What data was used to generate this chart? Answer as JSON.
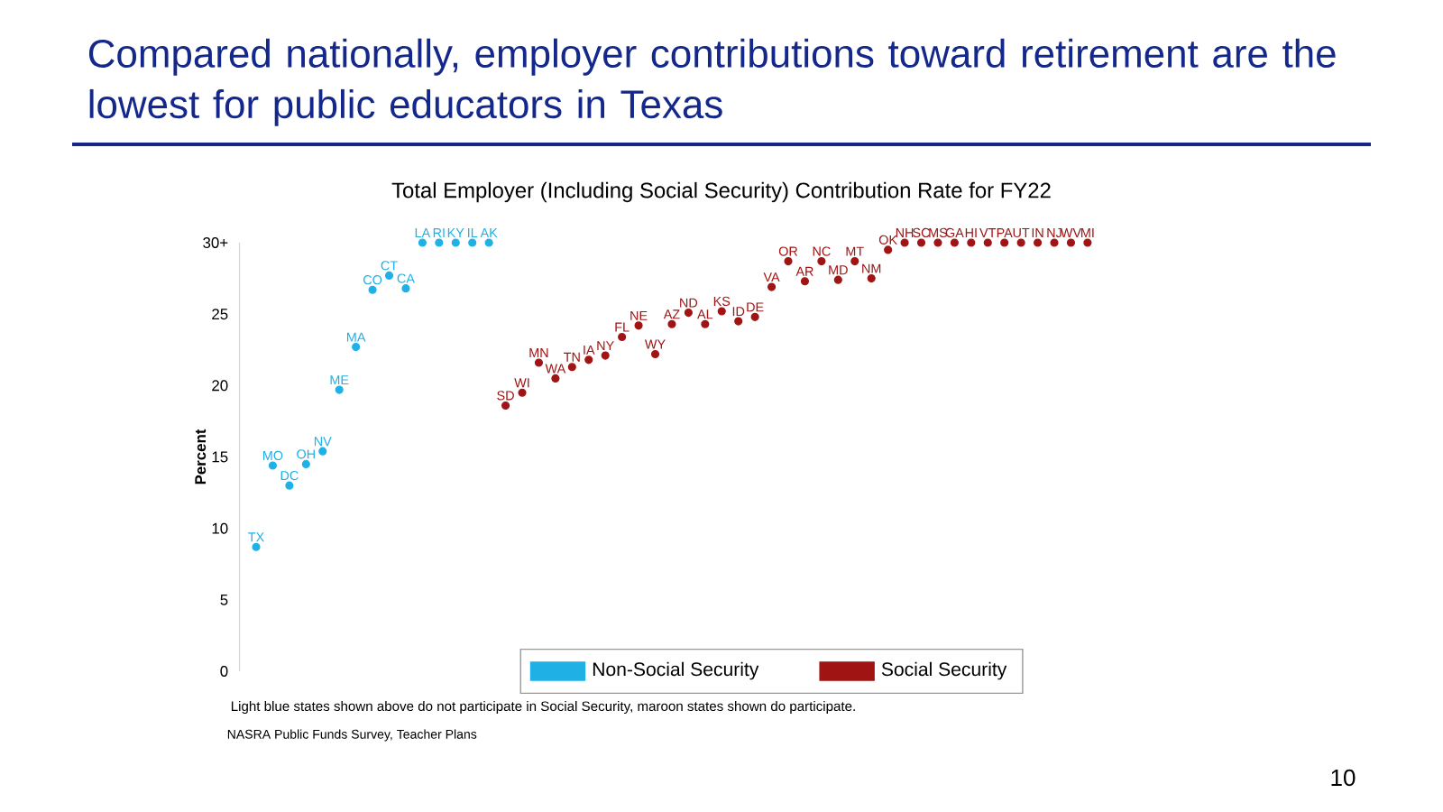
{
  "chart_data": {
    "type": "scatter",
    "title": "Compared nationally, employer contributions toward retirement are the lowest for public educators in Texas",
    "subtitle": "Total Employer (Including Social Security) Contribution Rate for FY22",
    "ylabel": "Percent",
    "categories": [
      "TX",
      "MO",
      "DC",
      "OH",
      "NV",
      "ME",
      "MA",
      "CO",
      "CT",
      "CA",
      "LA",
      "RI",
      "KY",
      "IL",
      "AK",
      "SD",
      "WI",
      "MN",
      "WA",
      "TN",
      "IA",
      "NY",
      "FL",
      "NE",
      "WY",
      "AZ",
      "ND",
      "AL",
      "KS",
      "ID",
      "DE",
      "VA",
      "OR",
      "AR",
      "NC",
      "MD",
      "MT",
      "NM",
      "OK",
      "NH",
      "SC",
      "MS",
      "GA",
      "HI",
      "VT",
      "PA",
      "UT",
      "IN",
      "NJ",
      "WV",
      "MI"
    ],
    "series": [
      {
        "name": "Non-Social Security",
        "color": "#1fb1e6",
        "values": [
          8.7,
          14.4,
          13.0,
          14.5,
          15.4,
          19.7,
          22.7,
          26.7,
          27.7,
          26.8,
          30,
          30,
          30,
          30,
          30,
          null,
          null,
          null,
          null,
          null,
          null,
          null,
          null,
          null,
          null,
          null,
          null,
          null,
          null,
          null,
          null,
          null,
          null,
          null,
          null,
          null,
          null,
          null,
          null,
          null,
          null,
          null,
          null,
          null,
          null,
          null,
          null,
          null,
          null,
          null,
          null
        ]
      },
      {
        "name": "Social Security",
        "color": "#a01414",
        "values": [
          null,
          null,
          null,
          null,
          null,
          null,
          null,
          null,
          null,
          null,
          null,
          null,
          null,
          null,
          null,
          18.6,
          19.5,
          21.6,
          20.5,
          21.3,
          21.8,
          22.1,
          23.4,
          24.2,
          22.2,
          24.3,
          25.1,
          24.3,
          25.2,
          24.5,
          24.8,
          26.9,
          28.7,
          27.3,
          28.7,
          27.4,
          28.7,
          27.5,
          29.5,
          30,
          30,
          30,
          30,
          30,
          30,
          30,
          30,
          30,
          30,
          30,
          30
        ]
      }
    ],
    "ylim": [
      0,
      30
    ],
    "yticks": [
      0,
      5,
      10,
      15,
      20,
      25,
      {
        "value": 30,
        "label": "30+"
      }
    ],
    "tick_labels": "y",
    "legend": "bottom",
    "marker": "circle",
    "annotations": [
      "Light blue states shown above do not participate in Social Security, maroon states shown do participate.",
      "NASRA Public Funds Survey, Teacher Plans",
      "10"
    ]
  }
}
